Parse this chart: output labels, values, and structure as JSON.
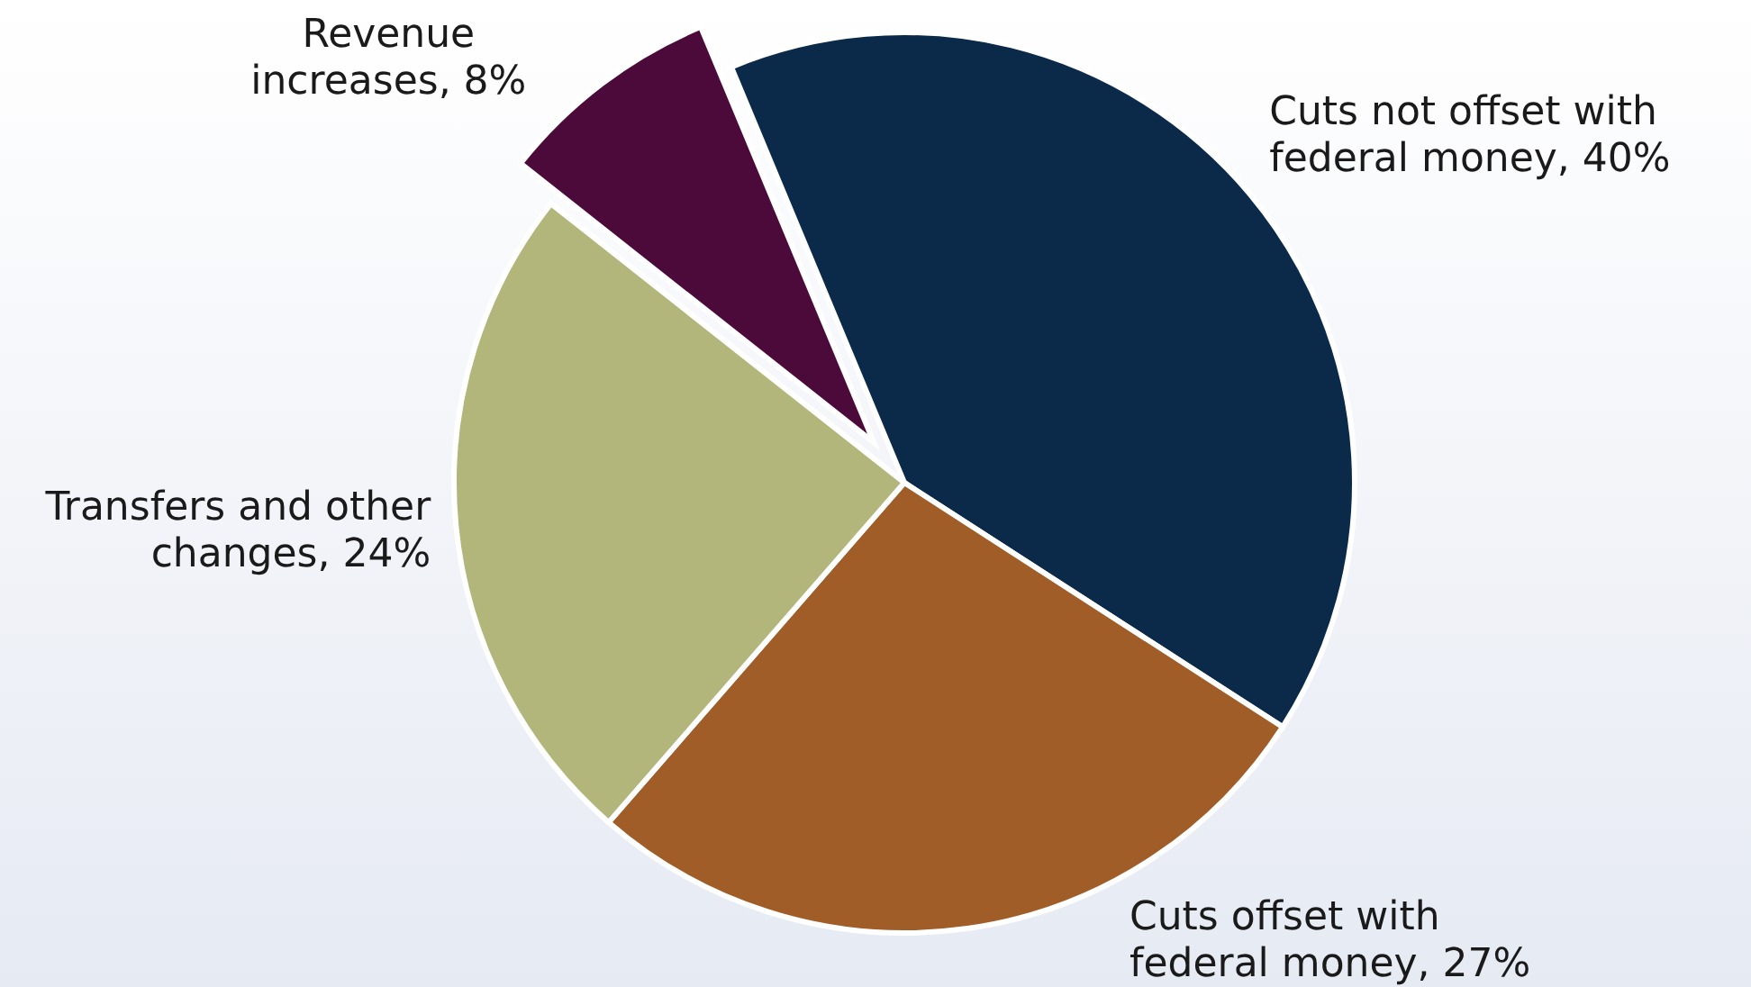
{
  "chart_data": {
    "type": "pie",
    "categories": [
      "Cuts not offset with federal money",
      "Cuts offset with federal money",
      "Transfers and other changes",
      "Revenue increases"
    ],
    "values": [
      40,
      27,
      24,
      8
    ],
    "value_labels": [
      "40%",
      "27%",
      "24%",
      "8%"
    ],
    "colors": [
      "#0b2a4a",
      "#a15d28",
      "#b2b67a",
      "#4b0a3a"
    ]
  }
}
